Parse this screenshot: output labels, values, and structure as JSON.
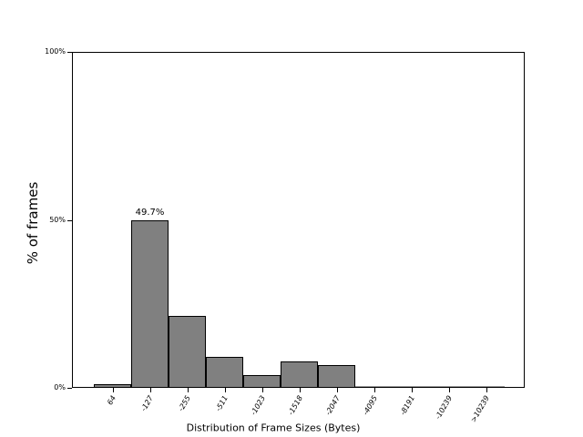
{
  "chart_data": {
    "type": "bar",
    "title": "",
    "xlabel": "Distribution of Frame Sizes (Bytes)",
    "ylabel": "% of frames",
    "categories": [
      "64",
      "-127",
      "-255",
      "-511",
      "-1023",
      "-1518",
      "-2047",
      "-4095",
      "-8191",
      "-10239",
      ">10239"
    ],
    "values": [
      0.8,
      49.7,
      21.2,
      9.0,
      3.5,
      7.6,
      6.5,
      0,
      0,
      0,
      0
    ],
    "unit": "%",
    "ylim": [
      0,
      100
    ],
    "yticks": [
      {
        "value": 0,
        "label": "0%"
      },
      {
        "value": 50,
        "label": "50%"
      },
      {
        "value": 100,
        "label": "100%"
      }
    ],
    "annotations": [
      {
        "category_index": 1,
        "text": "49.7%"
      }
    ],
    "bar_color": "#808080",
    "bar_edge_color": "#000000",
    "grid": false,
    "legend_position": "none"
  }
}
